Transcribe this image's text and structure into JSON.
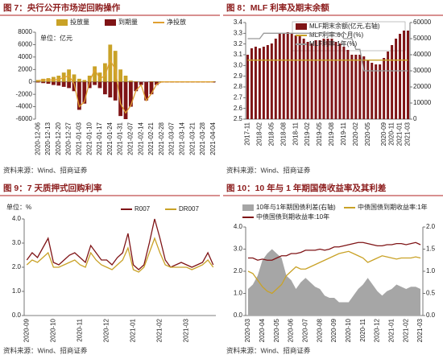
{
  "chart_data": [
    {
      "type": "combo",
      "title": "图 7：央行公开市场逆回购操作",
      "unit": "单位：亿元",
      "source": "资料来源：Wind、招商证券",
      "categories": [
        "2020-12-06",
        null,
        "2020-12-13",
        null,
        "2020-12-20",
        null,
        "2020-12-27",
        null,
        "2021-01-03",
        null,
        "2021-01-10",
        null,
        "2021-01-17",
        null,
        "2021-01-24",
        null,
        "2021-01-31",
        null,
        "2021-02-07",
        null,
        "2021-02-14",
        null,
        "2021-02-21",
        null,
        "2021-02-28",
        null,
        "2021-03-07",
        null,
        "2021-03-14",
        null,
        "2021-03-21",
        null,
        "2021-03-28",
        null,
        "2021-04-04"
      ],
      "ylim": [
        -6000,
        8000
      ],
      "yticks": [
        -6000,
        -4000,
        -2000,
        0,
        2000,
        4000,
        6000,
        8000
      ],
      "grid": false,
      "legend": "top",
      "series": [
        {
          "name": "投放量",
          "type": "bar",
          "color": "#c9a227",
          "values": [
            300,
            500,
            600,
            800,
            1000,
            1500,
            2000,
            1200,
            500,
            300,
            1000,
            2500,
            1500,
            3000,
            6000,
            5000,
            2000,
            1000,
            200,
            100,
            0,
            0,
            100,
            100,
            100,
            100,
            100,
            100,
            100,
            100,
            100,
            100,
            100,
            100,
            100
          ]
        },
        {
          "name": "到期量",
          "type": "bar",
          "color": "#7f1416",
          "values": [
            -100,
            -200,
            -300,
            -500,
            -600,
            -800,
            -1000,
            -1500,
            -4500,
            -3500,
            -1000,
            -500,
            -1000,
            -2000,
            -2500,
            -3000,
            -5500,
            -6000,
            -4000,
            -1500,
            -500,
            -3000,
            -2000,
            -500,
            -100,
            -100,
            -100,
            -100,
            -100,
            -100,
            -100,
            -100,
            -100,
            -100,
            -100
          ]
        },
        {
          "name": "净投放",
          "type": "line",
          "color": "#e0a030",
          "values": [
            200,
            300,
            300,
            300,
            400,
            700,
            1000,
            -300,
            -4000,
            -3200,
            0,
            2000,
            500,
            1000,
            3500,
            2000,
            -3500,
            -5000,
            -3800,
            -1400,
            -500,
            -3000,
            -1900,
            -400,
            0,
            0,
            0,
            0,
            0,
            0,
            0,
            0,
            0,
            0,
            0
          ]
        }
      ]
    },
    {
      "type": "combo",
      "title": "图 8：MLF 利率及期末余额",
      "source": "资料来源：Wind、招商证券",
      "categories": [
        "2017-11",
        null,
        null,
        "2018-02",
        null,
        null,
        "2018-05",
        null,
        null,
        "2018-08",
        null,
        null,
        "2018-11",
        null,
        null,
        "2019-02",
        null,
        null,
        "2019-05",
        null,
        null,
        "2019-08",
        null,
        null,
        "2019-11",
        null,
        null,
        "2020-02",
        null,
        null,
        "2020-05",
        null,
        null,
        null,
        "2020-09",
        null,
        "2020-11",
        null,
        "2021-01",
        null,
        "2021-03"
      ],
      "ylim": [
        2.5,
        3.4
      ],
      "yticks": [
        2.5,
        2.6,
        2.7,
        2.8,
        2.9,
        {
          "value": 3.0,
          "label": "3.0"
        },
        3.1,
        3.2,
        3.3,
        3.4
      ],
      "y2lim": [
        0,
        60000
      ],
      "y2ticks": [
        0,
        10000,
        20000,
        30000,
        40000,
        50000,
        60000
      ],
      "grid": false,
      "legend": "upper left",
      "series": [
        {
          "name": "MLF期末余额(亿元,右轴)",
          "type": "bar",
          "axis": "y2",
          "color": "#7f1416",
          "values": [
            40000,
            44000,
            45000,
            44000,
            45000,
            46000,
            47000,
            50000,
            53000,
            53000,
            54000,
            53000,
            52000,
            52000,
            50000,
            48000,
            47000,
            49000,
            49000,
            50000,
            50000,
            50000,
            48000,
            47000,
            45000,
            43000,
            40000,
            40000,
            40000,
            39000,
            37000,
            35000,
            34000,
            34000,
            38000,
            42000,
            46000,
            50000,
            53000,
            55000,
            55000
          ]
        },
        {
          "name": "MLF利率:6个月(%)",
          "type": "line",
          "color": "#c9a227",
          "values": [
            3.05,
            3.05,
            3.05,
            3.05,
            3.05,
            3.05,
            3.05,
            3.05,
            3.05,
            3.05,
            3.05,
            3.05,
            3.05,
            3.05,
            3.05,
            3.05,
            3.05,
            3.05,
            3.05,
            3.05,
            3.05,
            3.05,
            3.05,
            3.05,
            3.05,
            3.05,
            3.05,
            3.05,
            3.05,
            3.05,
            3.05,
            3.05,
            3.05,
            3.05,
            3.05,
            3.05,
            3.05,
            3.05,
            3.05,
            3.05,
            3.05
          ]
        },
        {
          "name": "MLF利率:1年(%)",
          "type": "line",
          "color": "#999999",
          "values": [
            3.25,
            3.25,
            3.25,
            3.25,
            3.3,
            3.3,
            3.3,
            3.3,
            3.3,
            3.3,
            3.3,
            3.3,
            3.3,
            3.3,
            3.3,
            3.3,
            3.3,
            3.3,
            3.3,
            3.3,
            3.3,
            3.3,
            3.3,
            3.3,
            3.25,
            3.25,
            3.25,
            3.15,
            3.15,
            2.95,
            2.95,
            2.95,
            2.95,
            2.95,
            2.95,
            2.95,
            2.95,
            2.95,
            2.95,
            2.95,
            2.95
          ]
        }
      ]
    },
    {
      "type": "line",
      "title": "图 9：7 天质押式回购利率",
      "unit": "单位：%",
      "source": "资料来源：Wind、招商证券",
      "categories": [
        "2020-09",
        null,
        null,
        null,
        null,
        "2020-10",
        null,
        null,
        null,
        null,
        "2020-11",
        null,
        null,
        null,
        null,
        "2020-12",
        null,
        null,
        null,
        null,
        "2021-01",
        null,
        null,
        null,
        null,
        "2021-02",
        null,
        null,
        null,
        null,
        "2021-03",
        null,
        null,
        null,
        null,
        null
      ],
      "ylim": [
        0,
        4
      ],
      "yticks": [
        {
          "value": 0,
          "label": "0.0"
        },
        {
          "value": 1,
          "label": "1.0"
        },
        {
          "value": 2,
          "label": "2.0"
        },
        {
          "value": 3,
          "label": "3.0"
        },
        {
          "value": 4,
          "label": "4.0"
        }
      ],
      "grid": false,
      "legend": "top",
      "series": [
        {
          "name": "R007",
          "color": "#7f1416",
          "values": [
            2.3,
            2.6,
            2.4,
            2.8,
            3.2,
            2.2,
            2.1,
            2.3,
            2.5,
            2.6,
            2.4,
            2.2,
            2.9,
            2.6,
            2.3,
            2.3,
            2.1,
            2.4,
            2.6,
            3.4,
            2.1,
            1.9,
            2.1,
            3.0,
            4.0,
            3.2,
            2.3,
            2.0,
            2.1,
            2.2,
            2.1,
            2.0,
            2.1,
            2.2,
            2.6,
            2.1
          ]
        },
        {
          "name": "DR007",
          "color": "#c9a227",
          "values": [
            2.1,
            2.3,
            2.2,
            2.4,
            2.6,
            2.0,
            2.0,
            2.1,
            2.2,
            2.3,
            2.1,
            2.0,
            2.6,
            2.3,
            2.1,
            2.0,
            1.9,
            2.1,
            2.3,
            2.8,
            1.9,
            1.8,
            2.0,
            2.6,
            3.2,
            2.6,
            2.1,
            2.0,
            2.0,
            2.0,
            2.0,
            1.9,
            2.0,
            2.1,
            2.3,
            2.0
          ]
        }
      ]
    },
    {
      "type": "combo",
      "title": "图 10：10 年与 1 年期国债收益率及其利差",
      "source": "资料来源：Wind、招商证券",
      "categories": [
        "2020-03",
        null,
        null,
        "2020-04",
        null,
        null,
        "2020-05",
        null,
        null,
        "2020-06",
        null,
        null,
        "2020-07",
        null,
        null,
        "2020-08",
        null,
        null,
        "2020-09",
        null,
        null,
        "2020-10",
        null,
        null,
        "2020-11",
        null,
        null,
        "2020-12",
        null,
        null,
        "2021-01",
        null,
        null,
        "2021-02",
        null,
        null,
        "2021-03"
      ],
      "ylim": [
        0,
        4
      ],
      "yticks": [
        {
          "value": 0,
          "label": "0.0"
        },
        {
          "value": 1,
          "label": "1.0"
        },
        {
          "value": 2,
          "label": "2.0"
        },
        {
          "value": 3,
          "label": "3.0"
        },
        {
          "value": 4,
          "label": "4.0"
        }
      ],
      "y2lim": [
        0,
        2
      ],
      "y2ticks": [
        {
          "value": 0,
          "label": "0.0"
        },
        0.5,
        {
          "value": 1,
          "label": "1.0"
        },
        1.5,
        {
          "value": 2,
          "label": "2.0"
        }
      ],
      "grid": false,
      "legend": "top",
      "series": [
        {
          "name": "10年与1年期国债利差(右轴)",
          "type": "area",
          "axis": "y2",
          "color": "#a6a6a6",
          "values": [
            0.6,
            0.7,
            0.9,
            1.25,
            1.4,
            1.5,
            1.4,
            1.3,
            0.9,
            0.8,
            0.6,
            0.75,
            0.85,
            0.75,
            0.65,
            0.6,
            0.45,
            0.4,
            0.4,
            0.3,
            0.3,
            0.3,
            0.45,
            0.6,
            0.7,
            0.85,
            0.7,
            0.55,
            0.45,
            0.55,
            0.6,
            0.7,
            0.65,
            0.6,
            0.65,
            0.65,
            0.6
          ]
        },
        {
          "name": "中债国债到期收益率:1年",
          "type": "line",
          "color": "#c9a227",
          "values": [
            2.0,
            1.9,
            1.6,
            1.3,
            1.1,
            1.0,
            1.2,
            1.4,
            1.8,
            2.0,
            2.2,
            2.1,
            2.1,
            2.2,
            2.3,
            2.4,
            2.5,
            2.6,
            2.7,
            2.8,
            2.85,
            2.9,
            2.8,
            2.7,
            2.6,
            2.4,
            2.5,
            2.6,
            2.7,
            2.65,
            2.6,
            2.55,
            2.6,
            2.6,
            2.6,
            2.65,
            2.6
          ]
        },
        {
          "name": "中债国债到期收益率:10年",
          "type": "line",
          "color": "#7f1416",
          "values": [
            2.6,
            2.6,
            2.5,
            2.55,
            2.5,
            2.5,
            2.6,
            2.7,
            2.7,
            2.8,
            2.8,
            2.85,
            2.95,
            2.95,
            2.95,
            3.0,
            2.95,
            3.0,
            3.1,
            3.1,
            3.15,
            3.2,
            3.25,
            3.3,
            3.3,
            3.25,
            3.2,
            3.15,
            3.15,
            3.2,
            3.2,
            3.25,
            3.25,
            3.2,
            3.25,
            3.3,
            3.2
          ]
        }
      ]
    }
  ]
}
